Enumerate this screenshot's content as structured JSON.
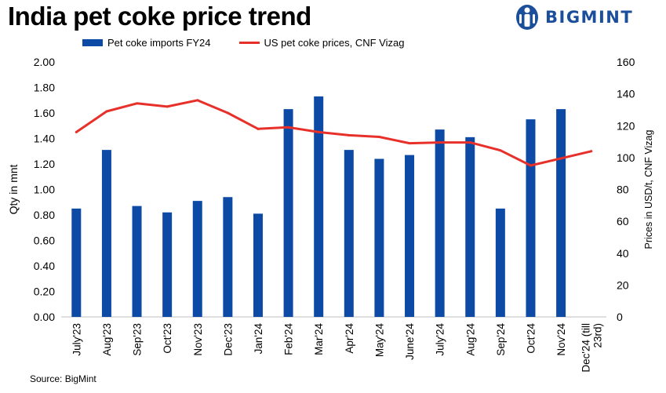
{
  "title": "India pet coke price trend",
  "logo_text": "BIGMINT",
  "source": "Source:  BigMint",
  "colors": {
    "bars": "#0d4aa6",
    "line": "#e8302a",
    "logo": "#1b4f9c"
  },
  "chart_data": {
    "type": "bar",
    "categories": [
      "July'23",
      "Aug'23",
      "Sep'23",
      "Oct'23",
      "Nov'23",
      "Dec'23",
      "Jan'24",
      "Feb'24",
      "Mar'24",
      "Apr'24",
      "May'24",
      "June'24",
      "July'24",
      "Aug'24",
      "Sep'24",
      "Oct'24",
      "Nov'24",
      "Dec'24 (till 23rd)"
    ],
    "series": [
      {
        "name": "Pet coke imports FY24",
        "type": "bar",
        "axis": "left",
        "values": [
          0.85,
          1.31,
          0.87,
          0.82,
          0.91,
          0.94,
          0.81,
          1.63,
          1.73,
          1.31,
          1.24,
          1.27,
          1.47,
          1.41,
          0.85,
          1.55,
          1.63,
          null
        ]
      },
      {
        "name": "US pet coke prices, CNF Vizag",
        "type": "line",
        "axis": "right",
        "values": [
          116,
          129,
          134,
          132,
          136,
          128,
          118,
          119,
          116,
          114,
          113,
          109,
          109.5,
          109.5,
          104.5,
          95,
          99.5,
          104
        ]
      }
    ],
    "ylabel": "Qty in mnt",
    "y2label": "Prices in USD/t, CNF Vizag",
    "ylim": [
      0,
      2
    ],
    "y2lim": [
      0,
      160
    ],
    "yticks": [
      "0.00",
      "0.20",
      "0.40",
      "0.60",
      "0.80",
      "1.00",
      "1.20",
      "1.40",
      "1.60",
      "1.80",
      "2.00"
    ],
    "y2ticks": [
      "0",
      "20",
      "40",
      "60",
      "80",
      "100",
      "120",
      "140",
      "160"
    ],
    "grid": false,
    "legend_position": "top"
  }
}
